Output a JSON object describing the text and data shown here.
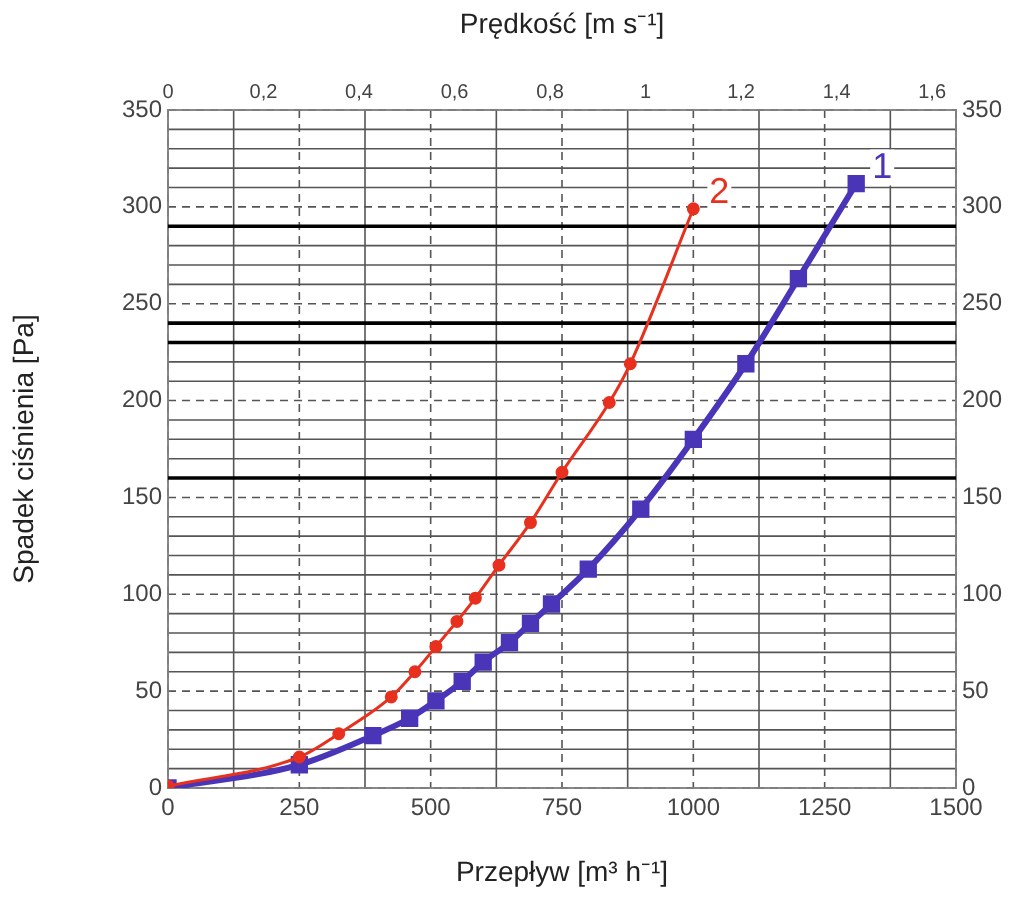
{
  "chart_data": {
    "type": "line",
    "xlabel": "Przepływ [m³ h⁻¹]",
    "x2label": "Prędkość [m s⁻¹]",
    "ylabel": "Spadek ciśnienia [Pa]",
    "xlim": [
      0,
      1500
    ],
    "xticks": [
      0,
      {
        "value": 125,
        "label": null
      },
      250,
      {
        "value": 375,
        "label": null
      },
      500,
      {
        "value": 625,
        "label": null
      },
      750,
      {
        "value": 875,
        "label": null
      },
      1000,
      {
        "value": 1125,
        "label": null
      },
      1250,
      {
        "value": 1375,
        "label": null
      },
      1500
    ],
    "x2lim": [
      0,
      1.65
    ],
    "x2ticks": [
      0,
      {
        "value": 0.2,
        "label": "0,2"
      },
      {
        "value": 0.4,
        "label": "0,4"
      },
      {
        "value": 0.6,
        "label": "0,6"
      },
      {
        "value": 0.8,
        "label": "0,8"
      },
      1,
      {
        "value": 1.2,
        "label": "1,2"
      },
      {
        "value": 1.4,
        "label": "1,4"
      },
      {
        "value": 1.6,
        "label": "1,6"
      }
    ],
    "ylim": [
      0,
      350
    ],
    "yticks": [
      0,
      {
        "value": 10,
        "label": null
      },
      {
        "value": 20,
        "label": null
      },
      {
        "value": 30,
        "label": null
      },
      {
        "value": 40,
        "label": null
      },
      50,
      {
        "value": 60,
        "label": null
      },
      {
        "value": 70,
        "label": null
      },
      {
        "value": 80,
        "label": null
      },
      {
        "value": 90,
        "label": null
      },
      100,
      {
        "value": 110,
        "label": null
      },
      {
        "value": 120,
        "label": null
      },
      {
        "value": 130,
        "label": null
      },
      {
        "value": 140,
        "label": null
      },
      150,
      {
        "value": 170,
        "label": null
      },
      {
        "value": 180,
        "label": null
      },
      {
        "value": 190,
        "label": null
      },
      200,
      {
        "value": 210,
        "label": null
      },
      {
        "value": 220,
        "label": null
      },
      250,
      {
        "value": 260,
        "label": null
      },
      {
        "value": 270,
        "label": null
      },
      {
        "value": 280,
        "label": null
      },
      300,
      {
        "value": 310,
        "label": null
      },
      {
        "value": 320,
        "label": null
      },
      {
        "value": 330,
        "label": null
      },
      {
        "value": 340,
        "label": null
      },
      350
    ],
    "y2lim": [
      0,
      350
    ],
    "y2ticks": [
      0,
      50,
      100,
      150,
      200,
      250,
      300,
      350
    ],
    "grid": true,
    "line_style": "solid",
    "ref_lines": [
      {
        "axis": "y",
        "value": 160,
        "color": "#000000"
      },
      {
        "axis": "y",
        "value": 230,
        "color": "#000000"
      },
      {
        "axis": "y",
        "value": 240,
        "color": "#000000"
      },
      {
        "axis": "y",
        "value": 290,
        "color": "#000000"
      }
    ],
    "series": [
      {
        "name": "1",
        "color": "#4a35b8",
        "marker": "square",
        "x": [
          0,
          250,
          390,
          460,
          510,
          560,
          600,
          650,
          690,
          730,
          800,
          900,
          1000,
          1100,
          1200,
          1310
        ],
        "values": [
          0,
          12,
          27,
          36,
          45,
          55,
          65,
          75,
          85,
          95,
          113,
          144,
          180,
          219,
          263,
          312
        ]
      },
      {
        "name": "2",
        "color": "#e8301e",
        "marker": "circle",
        "x": [
          0,
          250,
          325,
          425,
          470,
          510,
          550,
          585,
          630,
          690,
          750,
          840,
          880,
          1000
        ],
        "values": [
          1,
          16,
          28,
          47,
          60,
          73,
          86,
          98,
          115,
          137,
          163,
          199,
          219,
          299
        ]
      }
    ]
  }
}
